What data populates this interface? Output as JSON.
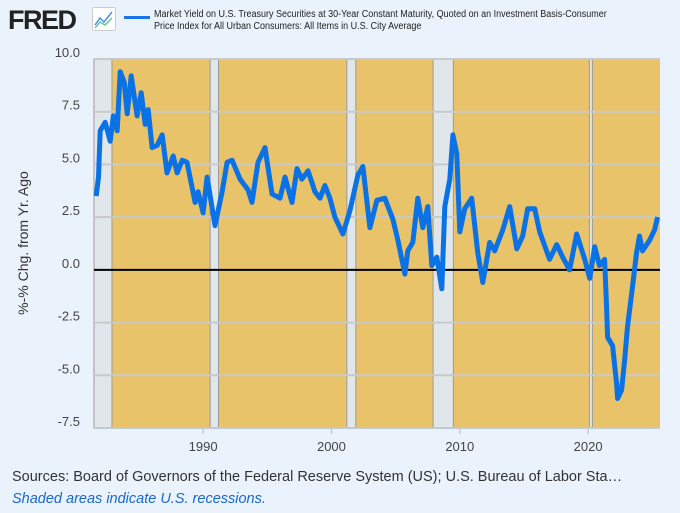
{
  "header": {
    "logo": "FRED",
    "series_title": "Market Yield on U.S. Treasury Securities at 30-Year Constant Maturity, Quoted on an Investment Basis-Consumer Price Index for All Urban Consumers: All Items in U.S. City Average"
  },
  "footer": {
    "sources": "Sources: Board of Governors of the Federal Reserve System (US); U.S. Bureau of Labor Sta…",
    "note": "Shaded areas indicate U.S. recessions."
  },
  "colors": {
    "line": "#0b72e6",
    "plot_bg": "#e8c36a",
    "recession": "#e1e6eb",
    "grid": "#c9c9c9"
  },
  "chart_data": {
    "type": "line",
    "ylabel": "%-% Chg. from Yr. Ago",
    "xlabel": "",
    "xlim": [
      1981.5,
      2025.6
    ],
    "ylim": [
      -7.5,
      10.0
    ],
    "yticks": [
      "10.0",
      "7.5",
      "5.0",
      "2.5",
      "0.0",
      "-2.5",
      "-5.0",
      "-7.5"
    ],
    "ytick_values": [
      10,
      7.5,
      5,
      2.5,
      0,
      -2.5,
      -5,
      -7.5
    ],
    "xticks": [
      "1990",
      "2000",
      "2010",
      "2020"
    ],
    "xtick_values": [
      1990,
      2000,
      2010,
      2020
    ],
    "grid": true,
    "zero_line": 0,
    "recessions": [
      [
        1981.5,
        1982.9
      ],
      [
        1990.55,
        1991.2
      ],
      [
        2001.2,
        2001.9
      ],
      [
        2007.92,
        2009.5
      ],
      [
        2020.1,
        2020.33
      ]
    ],
    "series": [
      {
        "name": "30Y Treasury yield minus CPI YoY",
        "x": [
          1981.67,
          1981.85,
          1981.98,
          1982.37,
          1982.76,
          1983.0,
          1983.31,
          1983.54,
          1983.85,
          1984.09,
          1984.4,
          1984.86,
          1985.18,
          1985.49,
          1985.72,
          1986.03,
          1986.42,
          1986.81,
          1987.19,
          1987.67,
          1987.98,
          1988.37,
          1988.75,
          1989.38,
          1989.61,
          1990.0,
          1990.31,
          1990.93,
          1991.48,
          1991.87,
          1992.26,
          1992.88,
          1993.5,
          1993.81,
          1994.28,
          1994.82,
          1995.37,
          1995.99,
          1996.38,
          1996.93,
          1997.32,
          1997.7,
          1998.17,
          1998.72,
          1999.11,
          1999.49,
          1999.88,
          2000.27,
          2000.89,
          2001.44,
          2002.06,
          2002.45,
          2003.0,
          2003.54,
          2004.16,
          2004.79,
          2005.18,
          2005.72,
          2005.95,
          2006.34,
          2006.73,
          2007.12,
          2007.51,
          2007.82,
          2008.21,
          2008.6,
          2008.83,
          2009.22,
          2009.46,
          2009.77,
          2010.0,
          2010.39,
          2010.93,
          2011.4,
          2011.79,
          2012.33,
          2012.72,
          2013.35,
          2013.89,
          2014.44,
          2014.9,
          2015.29,
          2015.84,
          2016.23,
          2017.0,
          2017.55,
          2018.02,
          2018.56,
          2019.11,
          2019.73,
          2020.12,
          2020.51,
          2020.89,
          2021.28,
          2021.44,
          2021.52,
          2021.91,
          2022.22,
          2022.3,
          2022.61,
          2022.84,
          2023.07,
          2023.46,
          2023.77,
          2024.0,
          2024.24,
          2024.79,
          2025.18,
          2025.41
        ],
        "y": [
          3.5,
          4.4,
          6.6,
          7.0,
          6.1,
          7.3,
          6.6,
          9.4,
          8.9,
          7.4,
          9.2,
          7.3,
          8.4,
          6.9,
          7.6,
          5.8,
          5.9,
          6.4,
          4.6,
          5.4,
          4.6,
          5.2,
          5.1,
          3.2,
          3.7,
          2.7,
          4.4,
          2.1,
          3.7,
          5.1,
          5.2,
          4.3,
          3.8,
          3.2,
          5.1,
          5.8,
          3.6,
          3.4,
          4.4,
          3.2,
          4.8,
          4.3,
          4.7,
          3.7,
          3.4,
          4.0,
          3.4,
          2.5,
          1.7,
          2.8,
          4.5,
          4.9,
          2.0,
          3.3,
          3.4,
          2.4,
          1.4,
          -0.2,
          0.9,
          1.3,
          3.4,
          2.0,
          3.0,
          0.2,
          0.6,
          -0.9,
          3.0,
          4.3,
          6.4,
          5.5,
          1.8,
          2.9,
          3.4,
          0.8,
          -0.6,
          1.3,
          0.9,
          1.9,
          3.0,
          1.0,
          1.6,
          2.9,
          2.9,
          1.8,
          0.5,
          1.2,
          0.6,
          0.0,
          1.7,
          0.5,
          -0.4,
          1.1,
          0.2,
          0.5,
          -1.8,
          -3.2,
          -3.6,
          -5.4,
          -6.1,
          -5.7,
          -4.3,
          -2.7,
          -0.8,
          0.8,
          1.6,
          0.9,
          1.4,
          1.9,
          2.5
        ]
      }
    ]
  }
}
